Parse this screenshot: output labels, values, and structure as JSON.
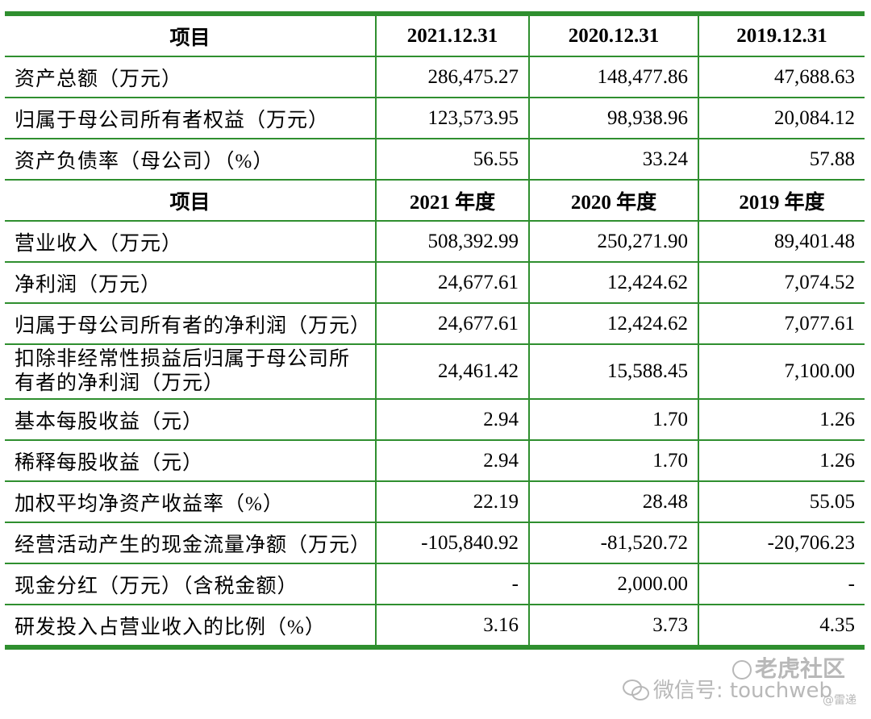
{
  "table": {
    "header1": [
      "项目",
      "2021.12.31",
      "2020.12.31",
      "2019.12.31"
    ],
    "header2": [
      "项目",
      "2021 年度",
      "2020 年度",
      "2019 年度"
    ],
    "rows1": [
      {
        "label": "资产总额（万元）",
        "v2021": "286,475.27",
        "v2020": "148,477.86",
        "v2019": "47,688.63"
      },
      {
        "label": "归属于母公司所有者权益（万元）",
        "v2021": "123,573.95",
        "v2020": "98,938.96",
        "v2019": "20,084.12"
      },
      {
        "label": "资产负债率（母公司）（%）",
        "v2021": "56.55",
        "v2020": "33.24",
        "v2019": "57.88"
      }
    ],
    "rows2": [
      {
        "label": "营业收入（万元）",
        "v2021": "508,392.99",
        "v2020": "250,271.90",
        "v2019": "89,401.48"
      },
      {
        "label": "净利润（万元）",
        "v2021": "24,677.61",
        "v2020": "12,424.62",
        "v2019": "7,074.52"
      },
      {
        "label": "归属于母公司所有者的净利润（万元）",
        "v2021": "24,677.61",
        "v2020": "12,424.62",
        "v2019": "7,077.61"
      },
      {
        "label_line1": "扣除非经常性损益后归属于母公司所",
        "label_line2": "有者的净利润（万元）",
        "v2021": "24,461.42",
        "v2020": "15,588.45",
        "v2019": "7,100.00"
      },
      {
        "label": "基本每股收益（元）",
        "v2021": "2.94",
        "v2020": "1.70",
        "v2019": "1.26"
      },
      {
        "label": "稀释每股收益（元）",
        "v2021": "2.94",
        "v2020": "1.70",
        "v2019": "1.26"
      },
      {
        "label": "加权平均净资产收益率（%）",
        "v2021": "22.19",
        "v2020": "28.48",
        "v2019": "55.05"
      },
      {
        "label": "经营活动产生的现金流量净额（万元）",
        "v2021": "-105,840.92",
        "v2020": "-81,520.72",
        "v2019": "-20,706.23"
      },
      {
        "label": "现金分红（万元）（含税金额）",
        "v2021": "-",
        "v2020": "2,000.00",
        "v2019": "-"
      },
      {
        "label": "研发投入占营业收入的比例（%）",
        "v2021": "3.16",
        "v2020": "3.73",
        "v2019": "4.35"
      }
    ]
  },
  "watermark": {
    "brand": "老虎社区",
    "wechat": "微信号: touchweb",
    "author": "@雷递"
  },
  "colors": {
    "border": "#2f8f2f",
    "watermark": "#b8b8b8"
  }
}
